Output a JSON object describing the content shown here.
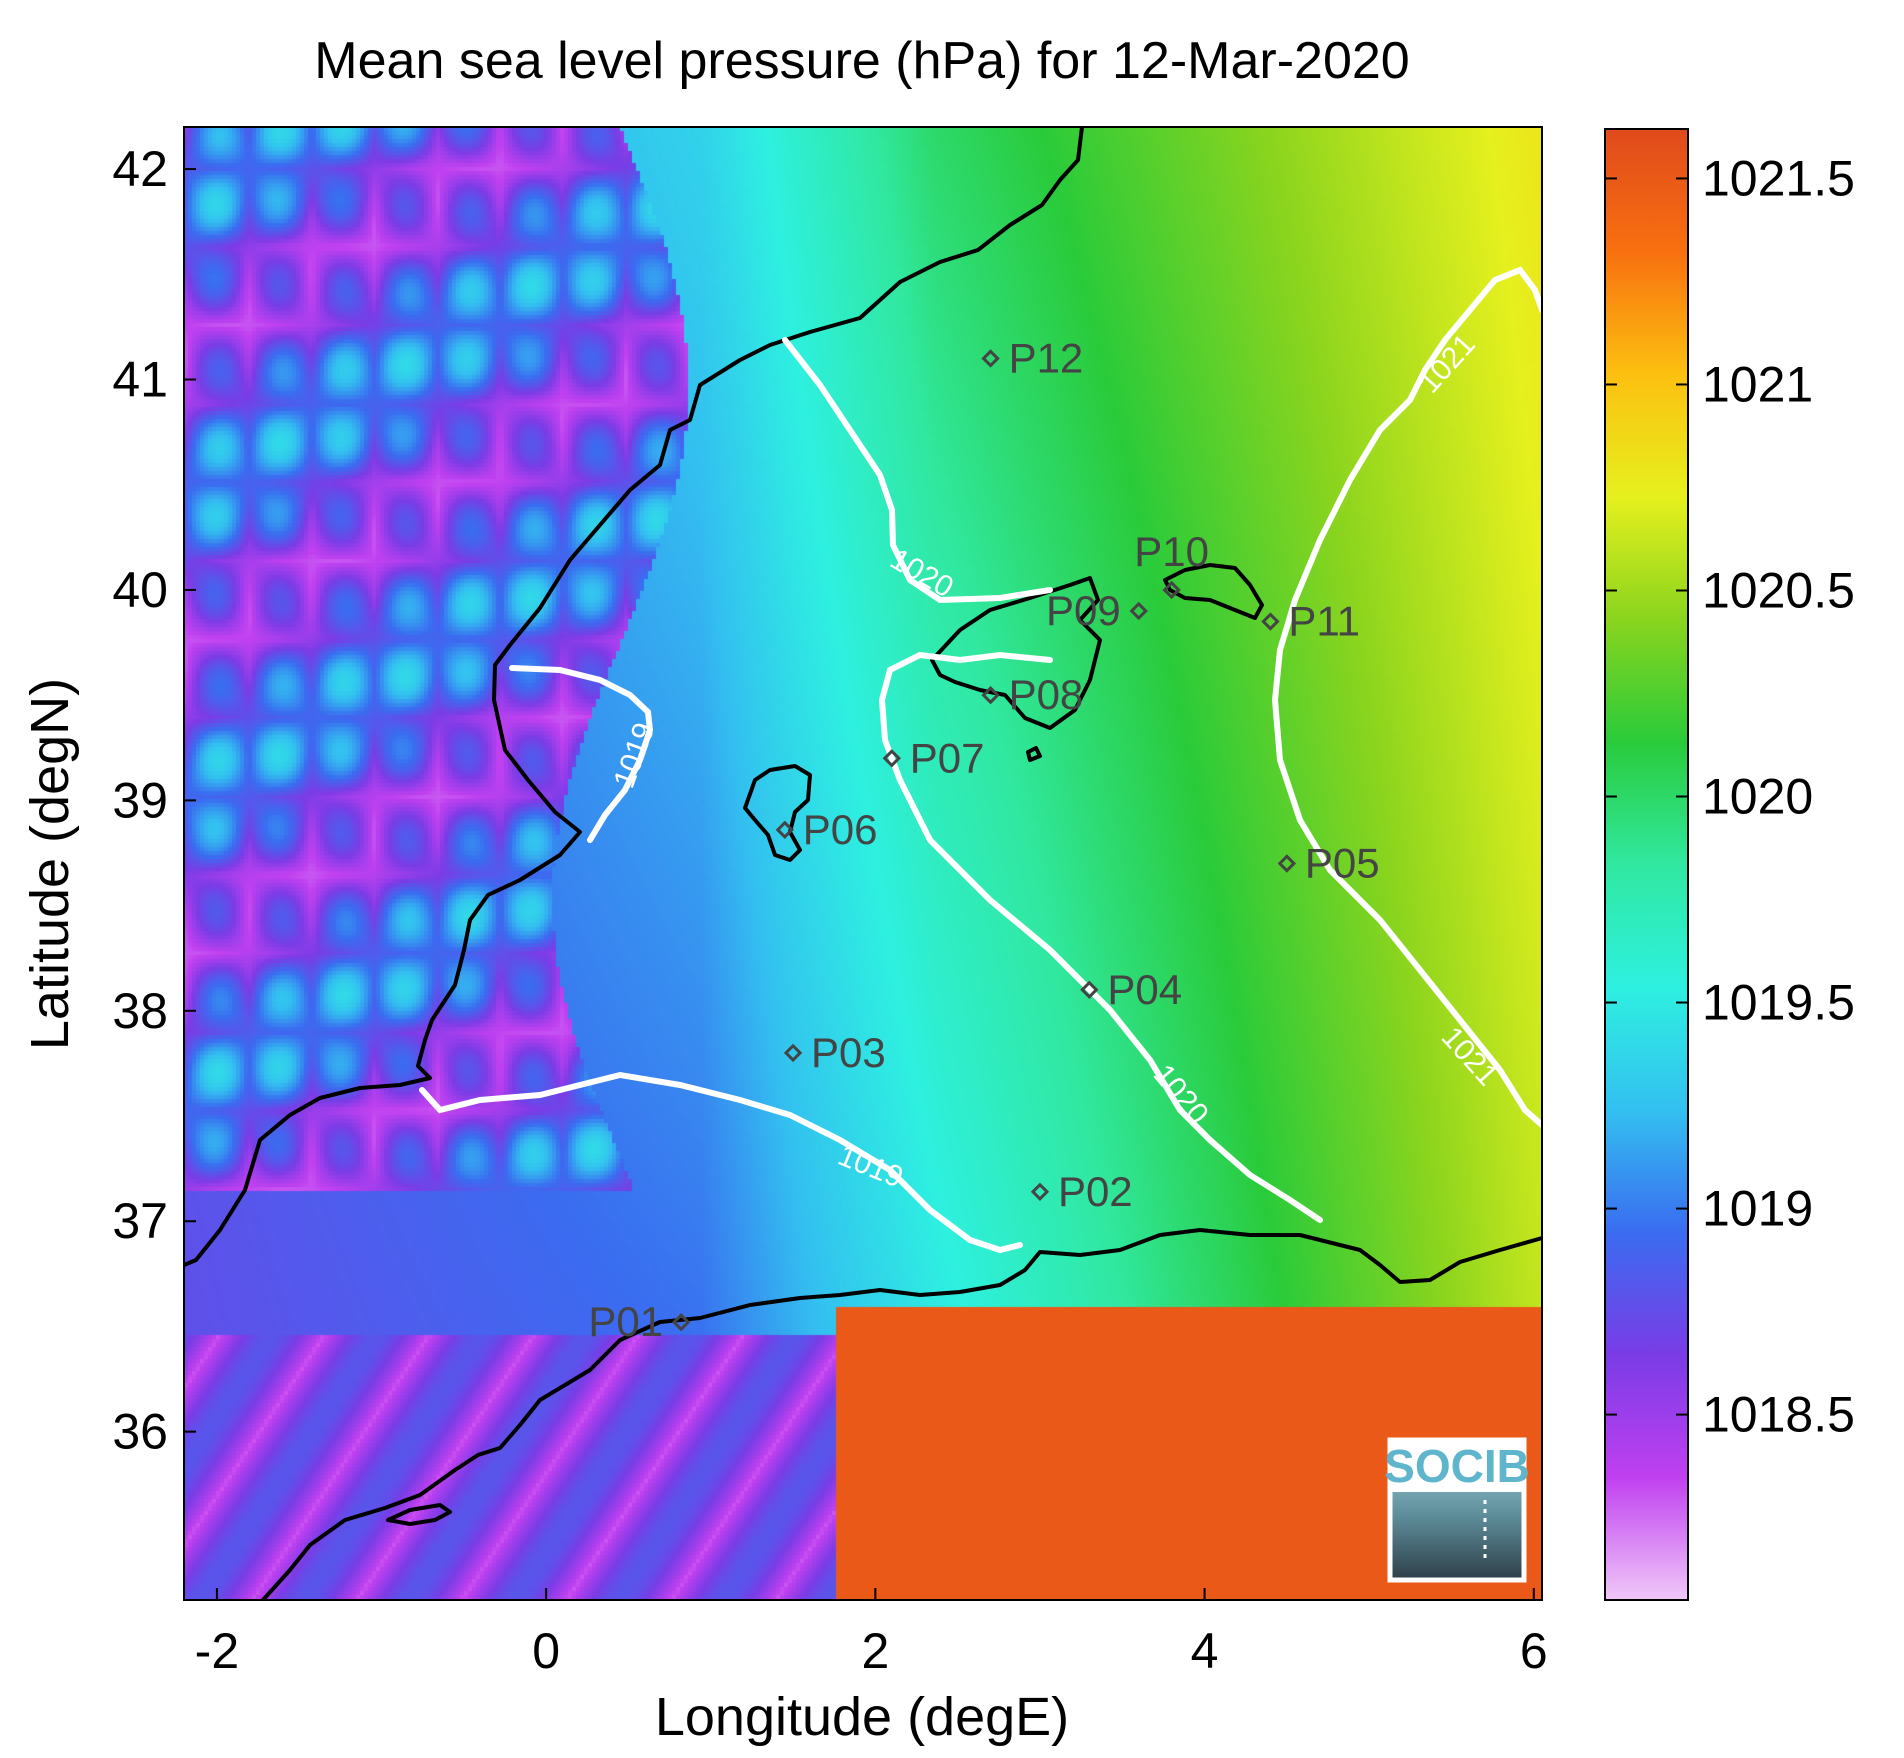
{
  "chart_data": {
    "type": "heatmap",
    "title": "Mean sea level pressure (hPa) for 12-Mar-2020",
    "xlabel": "Longitude (degE)",
    "ylabel": "Latitude (degN)",
    "xlim": [
      -2.2,
      6.05
    ],
    "ylim": [
      35.2,
      42.2
    ],
    "xticks": [
      {
        "value": -2,
        "label": "-2"
      },
      {
        "value": 0,
        "label": "0"
      },
      {
        "value": 2,
        "label": "2"
      },
      {
        "value": 4,
        "label": "4"
      },
      {
        "value": 6,
        "label": "6"
      }
    ],
    "yticks": [
      {
        "value": 36,
        "label": "36"
      },
      {
        "value": 37,
        "label": "37"
      },
      {
        "value": 38,
        "label": "38"
      },
      {
        "value": 39,
        "label": "39"
      },
      {
        "value": 40,
        "label": "40"
      },
      {
        "value": 41,
        "label": "41"
      },
      {
        "value": 42,
        "label": "42"
      }
    ],
    "colorbar": {
      "range": [
        1018.05,
        1021.62
      ],
      "ticks": [
        {
          "value": 1018.5,
          "label": "1018.5"
        },
        {
          "value": 1019,
          "label": "1019"
        },
        {
          "value": 1019.5,
          "label": "1019.5"
        },
        {
          "value": 1020,
          "label": "1020"
        },
        {
          "value": 1020.5,
          "label": "1020.5"
        },
        {
          "value": 1021,
          "label": "1021"
        },
        {
          "value": 1021.5,
          "label": "1021.5"
        }
      ],
      "colormap": [
        "#f0c8f8",
        "#c040f0",
        "#7a3ce6",
        "#3a6cf0",
        "#33c0f0",
        "#2ef0e0",
        "#30e8a0",
        "#2acb3a",
        "#8ad41e",
        "#e6f01e",
        "#fcc010",
        "#f87010",
        "#e04a1c"
      ]
    },
    "contour_levels": [
      {
        "value": 1019,
        "label": "1019"
      },
      {
        "value": 1020,
        "label": "1020"
      },
      {
        "value": 1021,
        "label": "1021"
      }
    ],
    "stations": [
      {
        "id": "P01",
        "lon": 0.82,
        "lat": 36.52,
        "label_side": "left"
      },
      {
        "id": "P02",
        "lon": 3.0,
        "lat": 37.14,
        "label_side": "right"
      },
      {
        "id": "P03",
        "lon": 1.5,
        "lat": 37.8,
        "label_side": "right"
      },
      {
        "id": "P04",
        "lon": 3.3,
        "lat": 38.1,
        "label_side": "right"
      },
      {
        "id": "P05",
        "lon": 4.5,
        "lat": 38.7,
        "label_side": "right"
      },
      {
        "id": "P06",
        "lon": 1.45,
        "lat": 38.86,
        "label_side": "right"
      },
      {
        "id": "P07",
        "lon": 2.1,
        "lat": 39.2,
        "label_side": "right"
      },
      {
        "id": "P08",
        "lon": 2.7,
        "lat": 39.5,
        "label_side": "right"
      },
      {
        "id": "P09",
        "lon": 3.6,
        "lat": 39.9,
        "label_side": "left"
      },
      {
        "id": "P10",
        "lon": 3.8,
        "lat": 40.0,
        "label_side": "above"
      },
      {
        "id": "P11",
        "lon": 4.4,
        "lat": 39.85,
        "label_side": "right"
      },
      {
        "id": "P12",
        "lon": 2.7,
        "lat": 41.1,
        "label_side": "right"
      }
    ],
    "grid": false,
    "logo": "SOCIB"
  }
}
